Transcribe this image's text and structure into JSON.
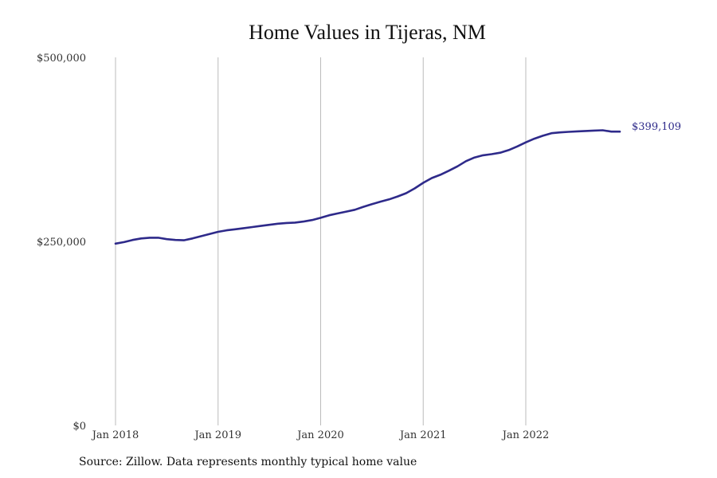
{
  "chart_data": {
    "type": "line",
    "title": "Home Values in Tijeras, NM",
    "xlabel": "",
    "ylabel": "",
    "x_range": [
      "2018-01",
      "2022-12"
    ],
    "ylim": [
      0,
      500000
    ],
    "y_ticks": [
      0,
      250000,
      500000
    ],
    "y_tick_labels": [
      "$0",
      "$250,000",
      "$500,000"
    ],
    "x_ticks": [
      "2018-01",
      "2019-01",
      "2020-01",
      "2021-01",
      "2022-01"
    ],
    "x_tick_labels": [
      "Jan 2018",
      "Jan 2019",
      "Jan 2020",
      "Jan 2021",
      "Jan 2022"
    ],
    "grid": "vertical",
    "line_color": "#2e2a8a",
    "grid_color": "#bbbbbb",
    "end_label": "$399,109",
    "series": [
      {
        "x": [
          "2018-01",
          "2018-02",
          "2018-03",
          "2018-04",
          "2018-05",
          "2018-06",
          "2018-07",
          "2018-08",
          "2018-09",
          "2018-10",
          "2018-11",
          "2018-12",
          "2019-01",
          "2019-02",
          "2019-03",
          "2019-04",
          "2019-05",
          "2019-06",
          "2019-07",
          "2019-08",
          "2019-09",
          "2019-10",
          "2019-11",
          "2019-12",
          "2020-01",
          "2020-02",
          "2020-03",
          "2020-04",
          "2020-05",
          "2020-06",
          "2020-07",
          "2020-08",
          "2020-09",
          "2020-10",
          "2020-11",
          "2020-12",
          "2021-01",
          "2021-02",
          "2021-03",
          "2021-04",
          "2021-05",
          "2021-06",
          "2021-07",
          "2021-08",
          "2021-09",
          "2021-10",
          "2021-11",
          "2021-12",
          "2022-01",
          "2022-02",
          "2022-03",
          "2022-04",
          "2022-05",
          "2022-06",
          "2022-07",
          "2022-08",
          "2022-09",
          "2022-10",
          "2022-11",
          "2022-12"
        ],
        "values": [
          247000,
          249000,
          252000,
          254000,
          255000,
          255000,
          253000,
          252000,
          251500,
          254000,
          257000,
          260000,
          263000,
          265000,
          266500,
          268000,
          269500,
          271000,
          272500,
          274000,
          275000,
          275500,
          277000,
          279000,
          282000,
          285500,
          288000,
          290500,
          293000,
          297000,
          300500,
          304000,
          307000,
          311000,
          315500,
          322000,
          329500,
          336000,
          340500,
          346000,
          352000,
          359000,
          364000,
          367000,
          368500,
          370500,
          374000,
          379000,
          384500,
          389500,
          393500,
          397000,
          398000,
          398800,
          399500,
          400000,
          400500,
          401000,
          399109,
          399109
        ]
      }
    ]
  },
  "source": "Source: Zillow. Data represents monthly typical home value"
}
